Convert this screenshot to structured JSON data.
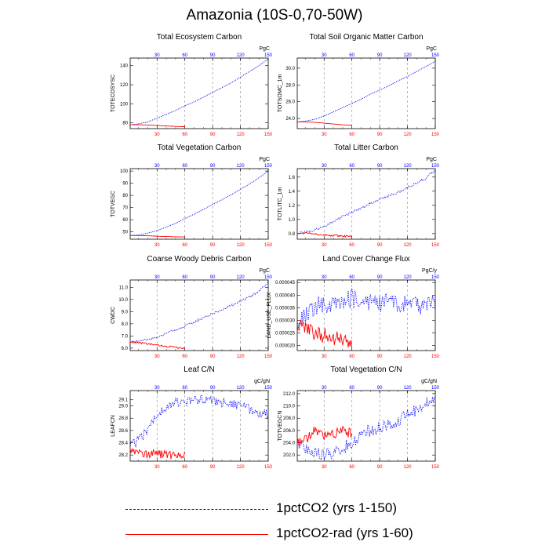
{
  "page_title": "Amazonia (10S-0,70-50W)",
  "colors": {
    "exp1": "#0000ff",
    "exp2": "#ff0000",
    "frame": "#000000",
    "grid": "#9a9a9a"
  },
  "legend": {
    "items": [
      {
        "label": "1pctCO2 (yrs 1-150)",
        "color": "#0000ff",
        "style": "dashed"
      },
      {
        "label": "1pctCO2-rad (yrs 1-60)",
        "color": "#ff0000",
        "style": "solid"
      }
    ]
  },
  "chart_data": [
    {
      "type": "line",
      "title": "Total Ecosystem Carbon",
      "ylabel": "TOTECOSYSC",
      "units": "PgC",
      "xlim": [
        1,
        150
      ],
      "ylim": [
        74,
        148
      ],
      "xticks": [
        "30",
        "60",
        "90",
        "120",
        "150"
      ],
      "yticks": [
        "80",
        "100",
        "120",
        "140"
      ],
      "grid": "dashed vertical lines at x = 30, 60, 90, 120",
      "series": [
        {
          "name": "1pctCO2 (yrs 1-150)",
          "color": "#0000ff",
          "x": [
            1,
            10,
            20,
            30,
            40,
            50,
            60,
            70,
            80,
            90,
            100,
            110,
            120,
            130,
            140,
            150
          ],
          "y": [
            78,
            79,
            81,
            85,
            89,
            93,
            98,
            102,
            107,
            112,
            117,
            122,
            128,
            134,
            140,
            147
          ]
        },
        {
          "name": "1pctCO2-rad (yrs 1-60)",
          "color": "#ff0000",
          "x": [
            1,
            10,
            20,
            30,
            40,
            50,
            60
          ],
          "y": [
            78,
            78,
            77.8,
            77.3,
            76.8,
            76.3,
            76
          ]
        }
      ]
    },
    {
      "type": "line",
      "title": "Total Soil Organic Matter Carbon",
      "ylabel": "TOTSOMC_1m",
      "units": "PgC",
      "xlim": [
        1,
        150
      ],
      "ylim": [
        22.8,
        31.2
      ],
      "xticks": [
        "30",
        "60",
        "90",
        "120",
        "150"
      ],
      "yticks": [
        "24.0",
        "26.0",
        "28.0",
        "30.0"
      ],
      "grid": "dashed vertical lines at x = 30, 60, 90, 120",
      "series": [
        {
          "name": "1pctCO2 (yrs 1-150)",
          "color": "#0000ff",
          "x": [
            1,
            10,
            20,
            30,
            40,
            50,
            60,
            70,
            80,
            90,
            100,
            110,
            120,
            130,
            140,
            150
          ],
          "y": [
            23.6,
            23.7,
            23.9,
            24.3,
            24.8,
            25.3,
            25.8,
            26.3,
            26.9,
            27.4,
            27.9,
            28.5,
            29.0,
            29.6,
            30.2,
            30.8
          ]
        },
        {
          "name": "1pctCO2-rad (yrs 1-60)",
          "color": "#ff0000",
          "x": [
            1,
            10,
            20,
            30,
            40,
            50,
            60
          ],
          "y": [
            23.6,
            23.6,
            23.55,
            23.45,
            23.35,
            23.25,
            23.2
          ]
        }
      ]
    },
    {
      "type": "line",
      "title": "Total Vegetation Carbon",
      "ylabel": "TOTVEGC",
      "units": "PgC",
      "xlim": [
        1,
        150
      ],
      "ylim": [
        44,
        102
      ],
      "xticks": [
        "30",
        "60",
        "90",
        "120",
        "150"
      ],
      "yticks": [
        "50",
        "60",
        "70",
        "80",
        "90",
        "100"
      ],
      "grid": "dashed vertical lines at x = 30, 60, 90, 120",
      "series": [
        {
          "name": "1pctCO2 (yrs 1-150)",
          "color": "#0000ff",
          "x": [
            1,
            10,
            20,
            30,
            40,
            50,
            60,
            70,
            80,
            90,
            100,
            110,
            120,
            130,
            140,
            150
          ],
          "y": [
            47,
            47.5,
            49,
            51,
            54,
            57,
            61,
            64.5,
            68.5,
            72.5,
            76.5,
            80.5,
            85,
            89.5,
            94.5,
            100
          ]
        },
        {
          "name": "1pctCO2-rad (yrs 1-60)",
          "color": "#ff0000",
          "x": [
            1,
            10,
            20,
            30,
            40,
            50,
            60
          ],
          "y": [
            47,
            47,
            46.8,
            46.5,
            46.2,
            46,
            45.8
          ]
        }
      ]
    },
    {
      "type": "line",
      "title": "Total Litter Carbon",
      "ylabel": "TOTLITC_1m",
      "units": "PgC",
      "xlim": [
        1,
        150
      ],
      "ylim": [
        0.72,
        1.72
      ],
      "xticks": [
        "30",
        "60",
        "90",
        "120",
        "150"
      ],
      "yticks": [
        "0.8",
        "1.0",
        "1.2",
        "1.4",
        "1.6"
      ],
      "grid": "dashed vertical lines at x = 30, 60, 90, 120",
      "series": [
        {
          "name": "1pctCO2 (yrs 1-150)",
          "color": "#0000ff",
          "x": [
            1,
            10,
            20,
            30,
            40,
            50,
            60,
            70,
            80,
            90,
            100,
            110,
            120,
            130,
            140,
            145,
            150
          ],
          "y": [
            0.8,
            0.82,
            0.85,
            0.9,
            0.97,
            1.04,
            1.1,
            1.16,
            1.23,
            1.28,
            1.33,
            1.39,
            1.45,
            1.52,
            1.58,
            1.65,
            1.7
          ]
        },
        {
          "name": "1pctCO2-rad (yrs 1-60)",
          "color": "#ff0000",
          "x": [
            1,
            10,
            20,
            30,
            40,
            50,
            60
          ],
          "y": [
            0.8,
            0.81,
            0.8,
            0.78,
            0.77,
            0.76,
            0.76
          ]
        }
      ]
    },
    {
      "type": "line",
      "title": "Coarse Woody Debris Carbon",
      "ylabel": "CWDC",
      "units": "PgC",
      "xlim": [
        1,
        150
      ],
      "ylim": [
        5.8,
        11.6
      ],
      "xticks": [
        "30",
        "60",
        "90",
        "120",
        "150"
      ],
      "yticks": [
        "6.0",
        "7.0",
        "8.0",
        "9.0",
        "10.0",
        "11.0"
      ],
      "grid": "dashed vertical lines at x = 30, 60, 90, 120",
      "series": [
        {
          "name": "1pctCO2 (yrs 1-150)",
          "color": "#0000ff",
          "x": [
            1,
            10,
            20,
            30,
            40,
            50,
            60,
            70,
            80,
            90,
            100,
            110,
            120,
            130,
            140,
            150
          ],
          "y": [
            6.5,
            6.55,
            6.7,
            6.9,
            7.2,
            7.5,
            7.8,
            8.15,
            8.5,
            8.85,
            9.15,
            9.5,
            9.85,
            10.2,
            10.7,
            11.4
          ]
        },
        {
          "name": "1pctCO2-rad (yrs 1-60)",
          "color": "#ff0000",
          "x": [
            1,
            10,
            20,
            30,
            40,
            50,
            60
          ],
          "y": [
            6.5,
            6.45,
            6.35,
            6.25,
            6.15,
            6.05,
            6.0
          ]
        }
      ]
    },
    {
      "type": "line",
      "title": "Land Cover Change Flux",
      "ylabel": "LAND_USE_FLUX",
      "units": "PgC/y",
      "xlim": [
        1,
        150
      ],
      "ylim": [
        1.8e-05,
        4.6e-05
      ],
      "xticks": [
        "30",
        "60",
        "90",
        "120",
        "150"
      ],
      "yticks": [
        "0.000020",
        "0.000025",
        "0.000030",
        "0.000035",
        "0.000040",
        "0.000045"
      ],
      "grid": "dashed vertical lines at x = 30, 60, 90, 120",
      "series": [
        {
          "name": "1pctCO2 (yrs 1-150)",
          "color": "#0000ff",
          "x": [
            1,
            10,
            20,
            30,
            40,
            50,
            60,
            70,
            80,
            90,
            100,
            110,
            120,
            130,
            140,
            150
          ],
          "y": [
            3e-05,
            3.2e-05,
            3.5e-05,
            3.7e-05,
            3.6e-05,
            3.8e-05,
            3.9e-05,
            3.7e-05,
            3.8e-05,
            3.6e-05,
            3.7e-05,
            3.7e-05,
            3.6e-05,
            3.6e-05,
            3.5e-05,
            3.7e-05
          ]
        },
        {
          "name": "1pctCO2-rad (yrs 1-60)",
          "color": "#ff0000",
          "x": [
            1,
            10,
            20,
            30,
            40,
            50,
            60
          ],
          "y": [
            2.8e-05,
            2.7e-05,
            2.5e-05,
            2.4e-05,
            2.3e-05,
            2.2e-05,
            2e-05
          ]
        }
      ]
    },
    {
      "type": "line",
      "title": "Leaf C/N",
      "ylabel": "LEAFCN",
      "units": "gC/gN",
      "xlim": [
        1,
        150
      ],
      "ylim": [
        28.1,
        29.25
      ],
      "xticks": [
        "30",
        "60",
        "90",
        "120",
        "150"
      ],
      "yticks": [
        "28.2",
        "28.4",
        "28.6",
        "28.8",
        "29.0",
        "29.1"
      ],
      "grid": "dashed vertical lines at x = 30, 60, 90, 120",
      "series": [
        {
          "name": "1pctCO2 (yrs 1-150)",
          "color": "#0000ff",
          "x": [
            1,
            10,
            20,
            30,
            40,
            50,
            60,
            70,
            80,
            90,
            100,
            110,
            120,
            130,
            140,
            150
          ],
          "y": [
            28.35,
            28.45,
            28.6,
            28.85,
            29.0,
            29.05,
            29.05,
            29.1,
            29.1,
            29.1,
            29.05,
            29.05,
            29.0,
            28.95,
            28.9,
            28.85
          ]
        },
        {
          "name": "1pctCO2-rad (yrs 1-60)",
          "color": "#ff0000",
          "x": [
            1,
            10,
            20,
            30,
            40,
            50,
            60
          ],
          "y": [
            28.3,
            28.25,
            28.22,
            28.22,
            28.2,
            28.2,
            28.2
          ]
        }
      ]
    },
    {
      "type": "line",
      "title": "Total Vegetation C/N",
      "ylabel": "TOTVEGCN",
      "units": "gC/gN",
      "xlim": [
        1,
        150
      ],
      "ylim": [
        201,
        212.5
      ],
      "xticks": [
        "30",
        "60",
        "90",
        "120",
        "150"
      ],
      "yticks": [
        "202.0",
        "204.0",
        "206.0",
        "208.0",
        "210.0",
        "212.0"
      ],
      "grid": "dashed vertical lines at x = 30, 60, 90, 120",
      "series": [
        {
          "name": "1pctCO2 (yrs 1-150)",
          "color": "#0000ff",
          "x": [
            1,
            10,
            20,
            30,
            40,
            50,
            60,
            70,
            80,
            90,
            100,
            110,
            120,
            130,
            140,
            150
          ],
          "y": [
            204,
            203,
            202.5,
            202,
            202.5,
            203,
            204,
            205.5,
            206,
            206.5,
            207,
            207.5,
            208.5,
            209.5,
            210.5,
            211
          ]
        },
        {
          "name": "1pctCO2-rad (yrs 1-60)",
          "color": "#ff0000",
          "x": [
            1,
            10,
            20,
            30,
            40,
            50,
            60
          ],
          "y": [
            204,
            204.5,
            206,
            205,
            205.5,
            206,
            205.5
          ]
        }
      ]
    }
  ]
}
